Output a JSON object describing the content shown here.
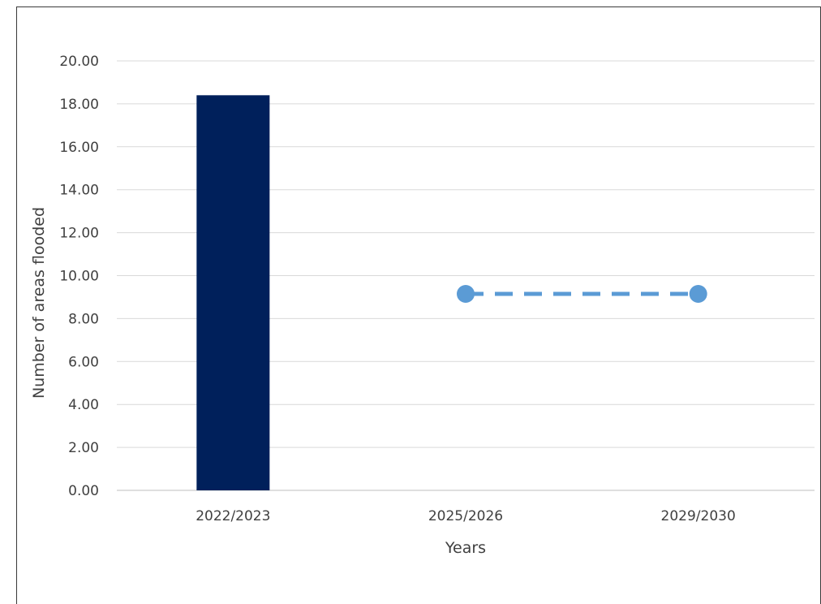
{
  "chart_data": {
    "type": "bar",
    "title": "",
    "xlabel": "Years",
    "ylabel": "Number of areas flooded",
    "categories": [
      "2022/2023",
      "2025/2026",
      "2029/2030"
    ],
    "ylim": [
      0,
      20
    ],
    "ytick_step": 2,
    "ytick_labels": [
      "0.00",
      "2.00",
      "4.00",
      "6.00",
      "8.00",
      "10.00",
      "12.00",
      "14.00",
      "16.00",
      "18.00",
      "20.00"
    ],
    "grid": true,
    "legend": "none",
    "series": [
      {
        "kind": "bar",
        "color": "#00205b",
        "values": [
          18.4,
          null,
          null
        ]
      },
      {
        "kind": "line",
        "style": "dashed",
        "marker": "circle",
        "color": "#5b9bd5",
        "values": [
          null,
          9.15,
          9.15
        ]
      }
    ]
  }
}
